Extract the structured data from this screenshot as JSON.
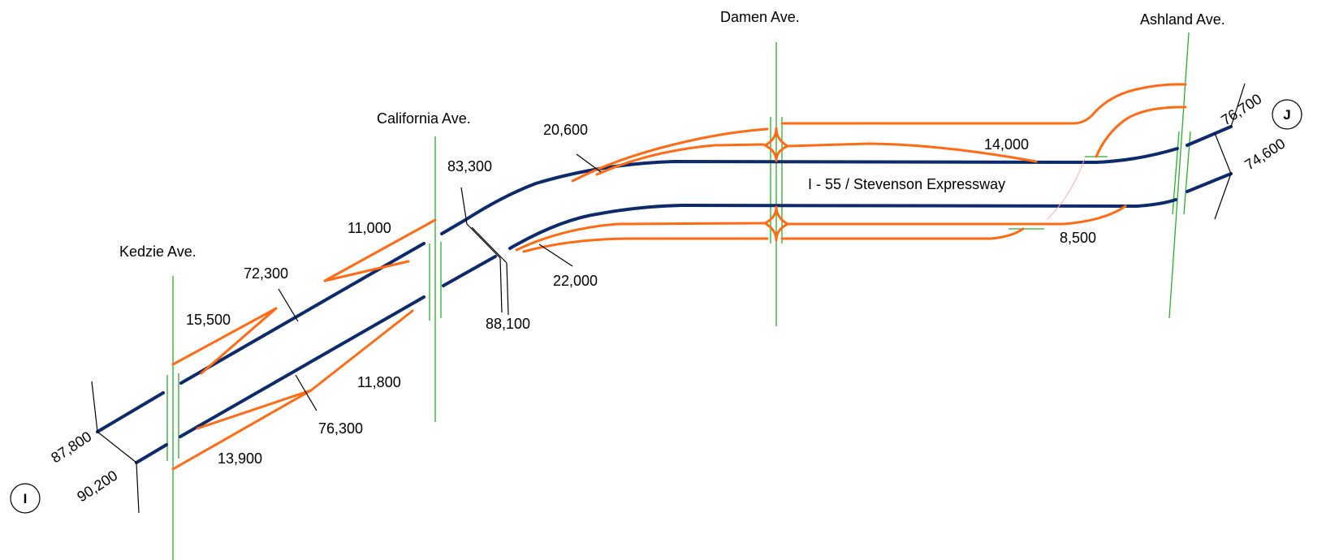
{
  "colors": {
    "highway": "#0d2a6b",
    "ramp": "#ff6a13",
    "street": "#25b02a",
    "text": "#000000"
  },
  "highway_name": "I - 55 / Stevenson Expressway",
  "streets": {
    "kedzie": "Kedzie Ave.",
    "california": "California Ave.",
    "damen": "Damen Ave.",
    "ashland": "Ashland Ave."
  },
  "nodes": {
    "start": "I",
    "end": "J"
  },
  "volumes": {
    "mainline_west_eb": "87,800",
    "mainline_west_wb": "90,200",
    "mainline_kc_eb": "72,300",
    "mainline_kc_wb": "76,300",
    "mainline_cd_eb": "83,300",
    "mainline_cd_wb": "88,100",
    "mainline_east_eb": "76,700",
    "mainline_east_wb": "74,600",
    "kedzie_on_eb": "15,500",
    "kedzie_off_wb": "13,900",
    "california_off_eb": "11,000",
    "california_on_wb": "11,800",
    "damen_on_eb": "20,600",
    "damen_off_wb": "22,000",
    "ashland_off_eb": "14,000",
    "ashland_on_wb": "8,500"
  }
}
